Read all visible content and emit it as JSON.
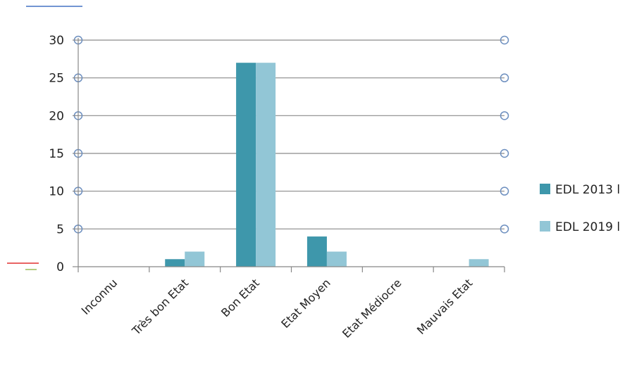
{
  "chart_data": {
    "type": "bar",
    "categories": [
      "Inconnu",
      "Très bon Etat",
      "Bon Etat",
      "Etat Moyen",
      "Etat Médiocre",
      "Mauvais Etat"
    ],
    "series": [
      {
        "name": "EDL 2013 l",
        "values": [
          0,
          1,
          27,
          4,
          0,
          0
        ],
        "color": "#3e97ab"
      },
      {
        "name": "EDL 2019 l",
        "values": [
          0,
          2,
          27,
          2,
          0,
          1
        ],
        "color": "#92c6d6"
      }
    ],
    "yticks": [
      "0",
      "5",
      "10",
      "15",
      "20",
      "25",
      "30"
    ],
    "ylim": [
      0,
      30
    ],
    "grid": true,
    "legend_position": "right",
    "colors": {
      "axis": "#888888",
      "grid": "#8a8a8a",
      "marker": "#6d8fbf"
    }
  }
}
